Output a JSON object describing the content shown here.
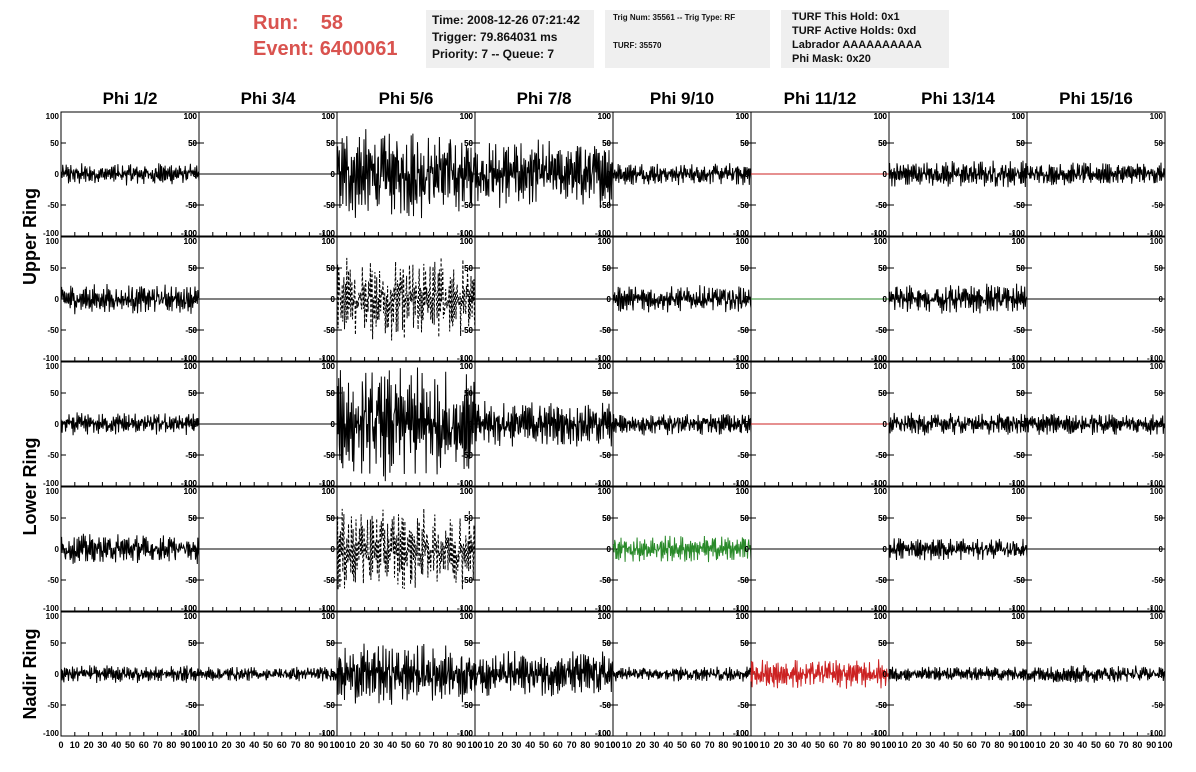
{
  "run_info": {
    "run_label": "Run:",
    "run_value": "58",
    "event_label": "Event:",
    "event_value": "6400061"
  },
  "time_box": {
    "time": "Time: 2008-12-26 07:21:42",
    "trigger": "Trigger: 79.864031 ms",
    "priority": "Priority: 7 -- Queue: 7"
  },
  "trig_box": {
    "trig_line": "Trig Num: 35561 -- Trig Type: RF",
    "turf_line": "TURF: 35570"
  },
  "turf_box": {
    "this_hold": "TURF This Hold: 0x1",
    "active_holds": "TURF Active Holds: 0xd",
    "labrador": "Labrador AAAAAAAAAA",
    "phi_mask": "Phi Mask: 0x20"
  },
  "chart_data": {
    "type": "line",
    "title": "",
    "columns": [
      "Phi 1/2",
      "Phi 3/4",
      "Phi 5/6",
      "Phi 7/8",
      "Phi 9/10",
      "Phi 11/12",
      "Phi 13/14",
      "Phi 15/16"
    ],
    "row_groups": [
      {
        "label": "Upper Ring",
        "rows": [
          0,
          1
        ]
      },
      {
        "label": "Lower Ring",
        "rows": [
          2,
          3
        ]
      },
      {
        "label": "Nadir Ring",
        "rows": [
          4
        ]
      }
    ],
    "xlim": [
      0,
      100
    ],
    "ylim": [
      -100,
      100
    ],
    "y_ticks": [
      "100",
      "50",
      "0",
      "-50",
      "-100"
    ],
    "x_ticks": [
      "0",
      "10",
      "20",
      "30",
      "40",
      "50",
      "60",
      "70",
      "80",
      "90",
      "100"
    ],
    "colors": {
      "default": "#000000",
      "red": "#cc2222",
      "green": "#2a8a2a"
    },
    "cells": [
      [
        {
          "amp": 15,
          "color": "default",
          "style": "solid"
        },
        {
          "amp": 0,
          "color": "default",
          "style": "solid"
        },
        {
          "amp": 60,
          "color": "default",
          "style": "solid"
        },
        {
          "amp": 45,
          "color": "default",
          "style": "solid"
        },
        {
          "amp": 15,
          "color": "default",
          "style": "solid"
        },
        {
          "amp": 0,
          "color": "red",
          "style": "solid"
        },
        {
          "amp": 18,
          "color": "default",
          "style": "solid"
        },
        {
          "amp": 15,
          "color": "default",
          "style": "solid"
        }
      ],
      [
        {
          "amp": 20,
          "color": "default",
          "style": "solid"
        },
        {
          "amp": 0,
          "color": "default",
          "style": "solid"
        },
        {
          "amp": 55,
          "color": "default",
          "style": "dashed"
        },
        {
          "amp": 0,
          "color": "default",
          "style": "solid"
        },
        {
          "amp": 18,
          "color": "default",
          "style": "solid"
        },
        {
          "amp": 0,
          "color": "green",
          "style": "solid"
        },
        {
          "amp": 20,
          "color": "default",
          "style": "solid"
        },
        {
          "amp": 0,
          "color": "default",
          "style": "solid"
        }
      ],
      [
        {
          "amp": 15,
          "color": "default",
          "style": "solid"
        },
        {
          "amp": 0,
          "color": "default",
          "style": "solid"
        },
        {
          "amp": 75,
          "color": "default",
          "style": "solid"
        },
        {
          "amp": 30,
          "color": "default",
          "style": "solid"
        },
        {
          "amp": 15,
          "color": "default",
          "style": "solid"
        },
        {
          "amp": 0,
          "color": "red",
          "style": "solid"
        },
        {
          "amp": 15,
          "color": "default",
          "style": "solid"
        },
        {
          "amp": 15,
          "color": "default",
          "style": "solid"
        }
      ],
      [
        {
          "amp": 20,
          "color": "default",
          "style": "solid"
        },
        {
          "amp": 0,
          "color": "default",
          "style": "solid"
        },
        {
          "amp": 55,
          "color": "default",
          "style": "dashed"
        },
        {
          "amp": 0,
          "color": "default",
          "style": "solid"
        },
        {
          "amp": 18,
          "color": "green",
          "style": "solid"
        },
        {
          "amp": 0,
          "color": "default",
          "style": "solid"
        },
        {
          "amp": 15,
          "color": "default",
          "style": "solid"
        },
        {
          "amp": 0,
          "color": "default",
          "style": "solid"
        }
      ],
      [
        {
          "amp": 12,
          "color": "default",
          "style": "solid"
        },
        {
          "amp": 10,
          "color": "default",
          "style": "solid"
        },
        {
          "amp": 40,
          "color": "default",
          "style": "solid"
        },
        {
          "amp": 30,
          "color": "default",
          "style": "solid"
        },
        {
          "amp": 10,
          "color": "default",
          "style": "solid"
        },
        {
          "amp": 20,
          "color": "red",
          "style": "solid"
        },
        {
          "amp": 10,
          "color": "default",
          "style": "solid"
        },
        {
          "amp": 12,
          "color": "default",
          "style": "solid"
        }
      ]
    ]
  }
}
